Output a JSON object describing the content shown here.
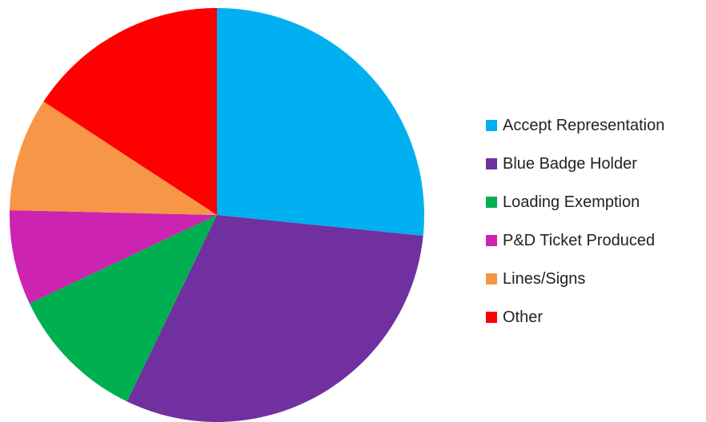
{
  "chart_data": {
    "type": "pie",
    "categories": [
      "Accept Representation",
      "Blue Badge Holder",
      "Loading Exemption",
      "P&D Ticket Produced",
      "Lines/Signs",
      "Other"
    ],
    "values": [
      27,
      31,
      11,
      7.5,
      9,
      16
    ],
    "colors": [
      "#00B0F0",
      "#7030A0",
      "#00B050",
      "#CC23B0",
      "#F79646",
      "#FF0000"
    ],
    "start_angle": "12 o'clock",
    "direction": "clockwise",
    "legend_position": "right"
  }
}
